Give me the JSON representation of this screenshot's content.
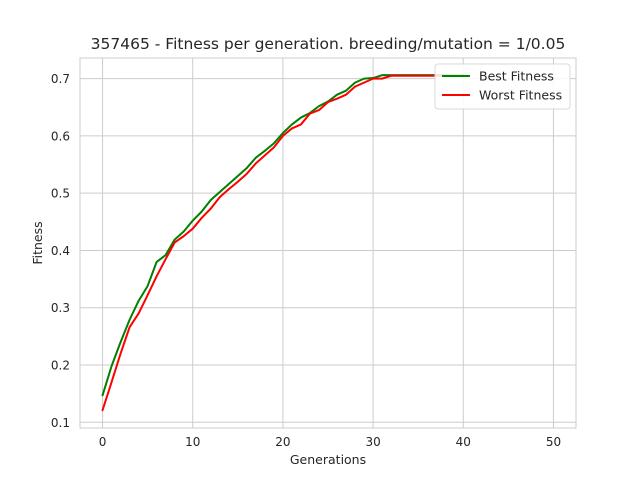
{
  "chart_data": {
    "type": "line",
    "title": "357465 - Fitness per generation. breeding/mutation = 1/0.05",
    "xlabel": "Generations",
    "ylabel": "Fitness",
    "xlim": [
      -2.5,
      52.5
    ],
    "ylim": [
      0.09,
      0.736
    ],
    "x_ticks": [
      0,
      10,
      20,
      30,
      40,
      50
    ],
    "y_ticks": [
      0.1,
      0.2,
      0.3,
      0.4,
      0.5,
      0.6,
      0.7
    ],
    "x_tick_labels": [
      "0",
      "10",
      "20",
      "30",
      "40",
      "50"
    ],
    "y_tick_labels": [
      "0.1",
      "0.2",
      "0.3",
      "0.4",
      "0.5",
      "0.6",
      "0.7"
    ],
    "grid": true,
    "legend_position": "top-right",
    "x": [
      0,
      1,
      2,
      3,
      4,
      5,
      6,
      7,
      8,
      9,
      10,
      11,
      12,
      13,
      14,
      15,
      16,
      17,
      18,
      19,
      20,
      21,
      22,
      23,
      24,
      25,
      26,
      27,
      28,
      29,
      30,
      31,
      32,
      33,
      34,
      35,
      36,
      37,
      38,
      39,
      40
    ],
    "series": [
      {
        "name": "Best Fitness",
        "color": "#008000",
        "values": [
          0.147,
          0.198,
          0.24,
          0.279,
          0.312,
          0.338,
          0.38,
          0.392,
          0.419,
          0.433,
          0.452,
          0.468,
          0.488,
          0.502,
          0.516,
          0.53,
          0.544,
          0.562,
          0.574,
          0.587,
          0.605,
          0.62,
          0.632,
          0.64,
          0.652,
          0.66,
          0.672,
          0.679,
          0.693,
          0.7,
          0.701,
          0.706,
          0.706,
          0.706,
          0.706,
          0.706,
          0.706,
          0.706,
          0.706,
          0.706,
          0.706
        ]
      },
      {
        "name": "Worst Fitness",
        "color": "#ff0000",
        "values": [
          0.121,
          0.17,
          0.22,
          0.266,
          0.29,
          0.322,
          0.355,
          0.385,
          0.414,
          0.425,
          0.438,
          0.457,
          0.473,
          0.493,
          0.507,
          0.52,
          0.534,
          0.552,
          0.566,
          0.58,
          0.6,
          0.613,
          0.62,
          0.639,
          0.645,
          0.659,
          0.665,
          0.672,
          0.686,
          0.693,
          0.7,
          0.7,
          0.705,
          0.705,
          0.705,
          0.705,
          0.705,
          0.705,
          0.705,
          0.705,
          0.705
        ]
      }
    ]
  }
}
